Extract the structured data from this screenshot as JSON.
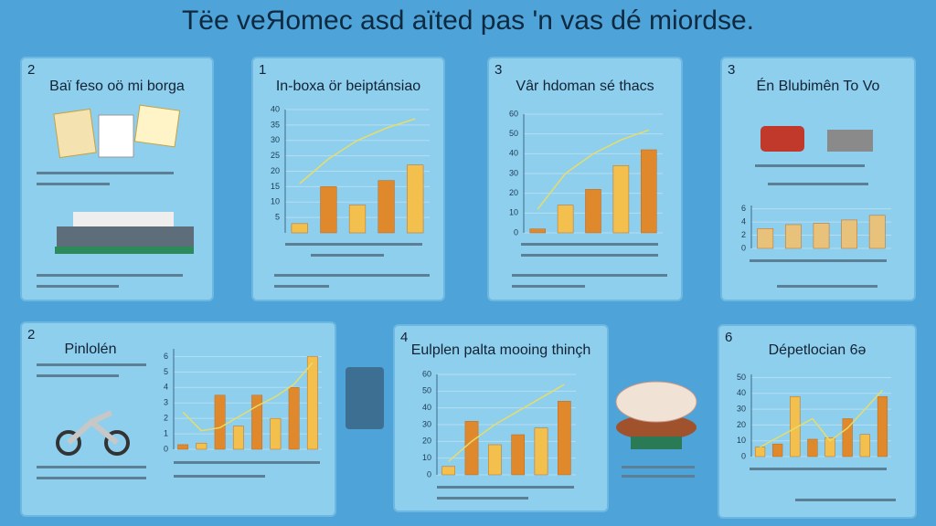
{
  "title": "Tëe veЯomec asd aïted pas 'n vas dé miordse.",
  "panels": [
    {
      "number": "2",
      "heading": "Baï feso oö mi borga"
    },
    {
      "number": "1",
      "heading": "In-boxa ör beiptánsiao"
    },
    {
      "number": "3",
      "heading": "Vâr hdoman sé thacs"
    },
    {
      "number": "3",
      "heading": "Én Blubimên To Vo"
    },
    {
      "number": "2",
      "heading": "Pinlolén"
    },
    {
      "number": "4",
      "heading": "Eulplen palta mooing thinçh"
    },
    {
      "number": "6",
      "heading": "Dépetlocian 6ə"
    }
  ],
  "charts": [
    {
      "yticks": [
        5,
        10,
        15,
        20,
        25,
        30,
        35,
        40
      ],
      "ylim": [
        0,
        40
      ],
      "values": [
        3,
        15,
        9,
        17,
        22
      ],
      "trend": [
        16,
        24,
        30,
        34,
        37
      ],
      "colors": [
        "#f3c04e",
        "#e0882c"
      ]
    },
    {
      "yticks": [
        0,
        10,
        20,
        30,
        40,
        50,
        60
      ],
      "ylim": [
        0,
        60
      ],
      "values": [
        2,
        14,
        22,
        34,
        42
      ],
      "trend": [
        12,
        30,
        40,
        47,
        52
      ],
      "colors": [
        "#e0882c",
        "#f3c04e"
      ]
    },
    {
      "yticks": [
        0,
        2,
        4,
        6
      ],
      "ylim": [
        0,
        6.5
      ],
      "values": [
        3,
        3.6,
        3.8,
        4.3,
        5
      ],
      "colors": [
        "#e8c27a",
        "#e8c27a"
      ]
    },
    {
      "yticks": [
        0,
        1,
        2,
        3,
        4,
        5,
        6
      ],
      "ylim": [
        0,
        6.5
      ],
      "values": [
        0.3,
        0.4,
        3.5,
        1.5,
        3.5,
        2,
        4,
        6
      ],
      "trend": [
        2.4,
        1.2,
        1.4,
        2.1,
        2.8,
        3.4,
        4.2,
        5.6
      ],
      "colors": [
        "#e0882c",
        "#f3c04e"
      ]
    },
    {
      "yticks": [
        0,
        10,
        20,
        30,
        40,
        50,
        60
      ],
      "ylim": [
        0,
        60
      ],
      "values": [
        5,
        32,
        18,
        24,
        28,
        44
      ],
      "trend": [
        8,
        20,
        30,
        38,
        46,
        54
      ],
      "colors": [
        "#f3c04e",
        "#e0882c"
      ]
    },
    {
      "yticks": [
        0,
        10,
        20,
        30,
        40,
        50
      ],
      "ylim": [
        0,
        52
      ],
      "values": [
        6,
        8,
        38,
        11,
        12,
        24,
        14,
        38
      ],
      "trend": [
        6,
        12,
        18,
        24,
        10,
        18,
        30,
        42
      ],
      "colors": [
        "#f3c04e",
        "#e0882c"
      ]
    }
  ]
}
